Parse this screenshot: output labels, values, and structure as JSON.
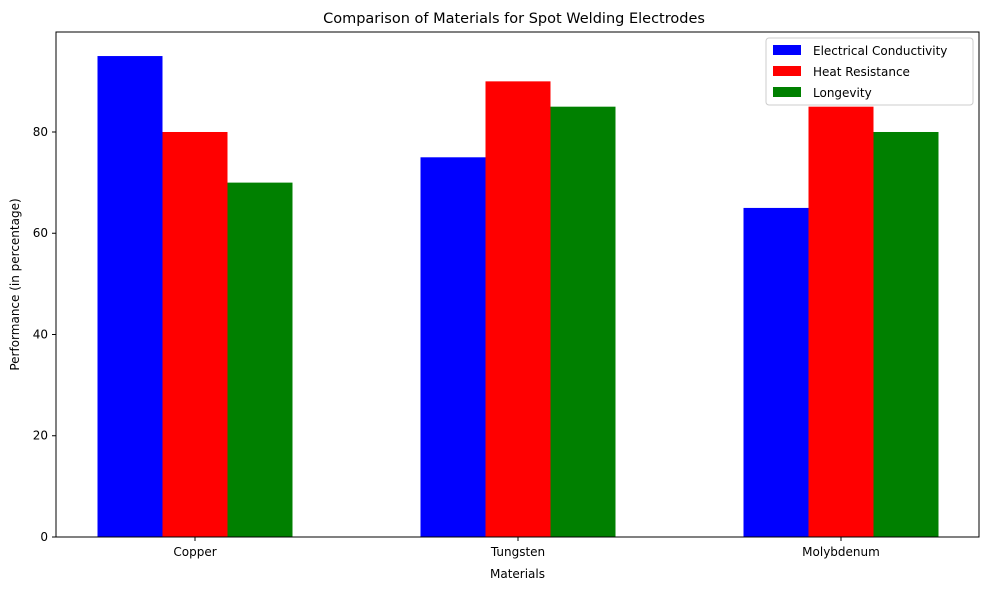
{
  "chart_data": {
    "type": "bar",
    "title": "Comparison of Materials for Spot Welding Electrodes",
    "xlabel": "Materials",
    "ylabel": "Performance (in percentage)",
    "categories": [
      "Copper",
      "Tungsten",
      "Molybdenum"
    ],
    "series": [
      {
        "name": "Electrical Conductivity",
        "values": [
          95,
          75,
          65
        ],
        "color": "#0000ff"
      },
      {
        "name": "Heat Resistance",
        "values": [
          80,
          90,
          85
        ],
        "color": "#ff0000"
      },
      {
        "name": "Longevity",
        "values": [
          70,
          85,
          80
        ],
        "color": "#008000"
      }
    ],
    "ylim": [
      0,
      99.75
    ],
    "yticks": [
      0,
      20,
      40,
      60,
      80
    ],
    "grid": false,
    "legend_position": "top-right"
  }
}
